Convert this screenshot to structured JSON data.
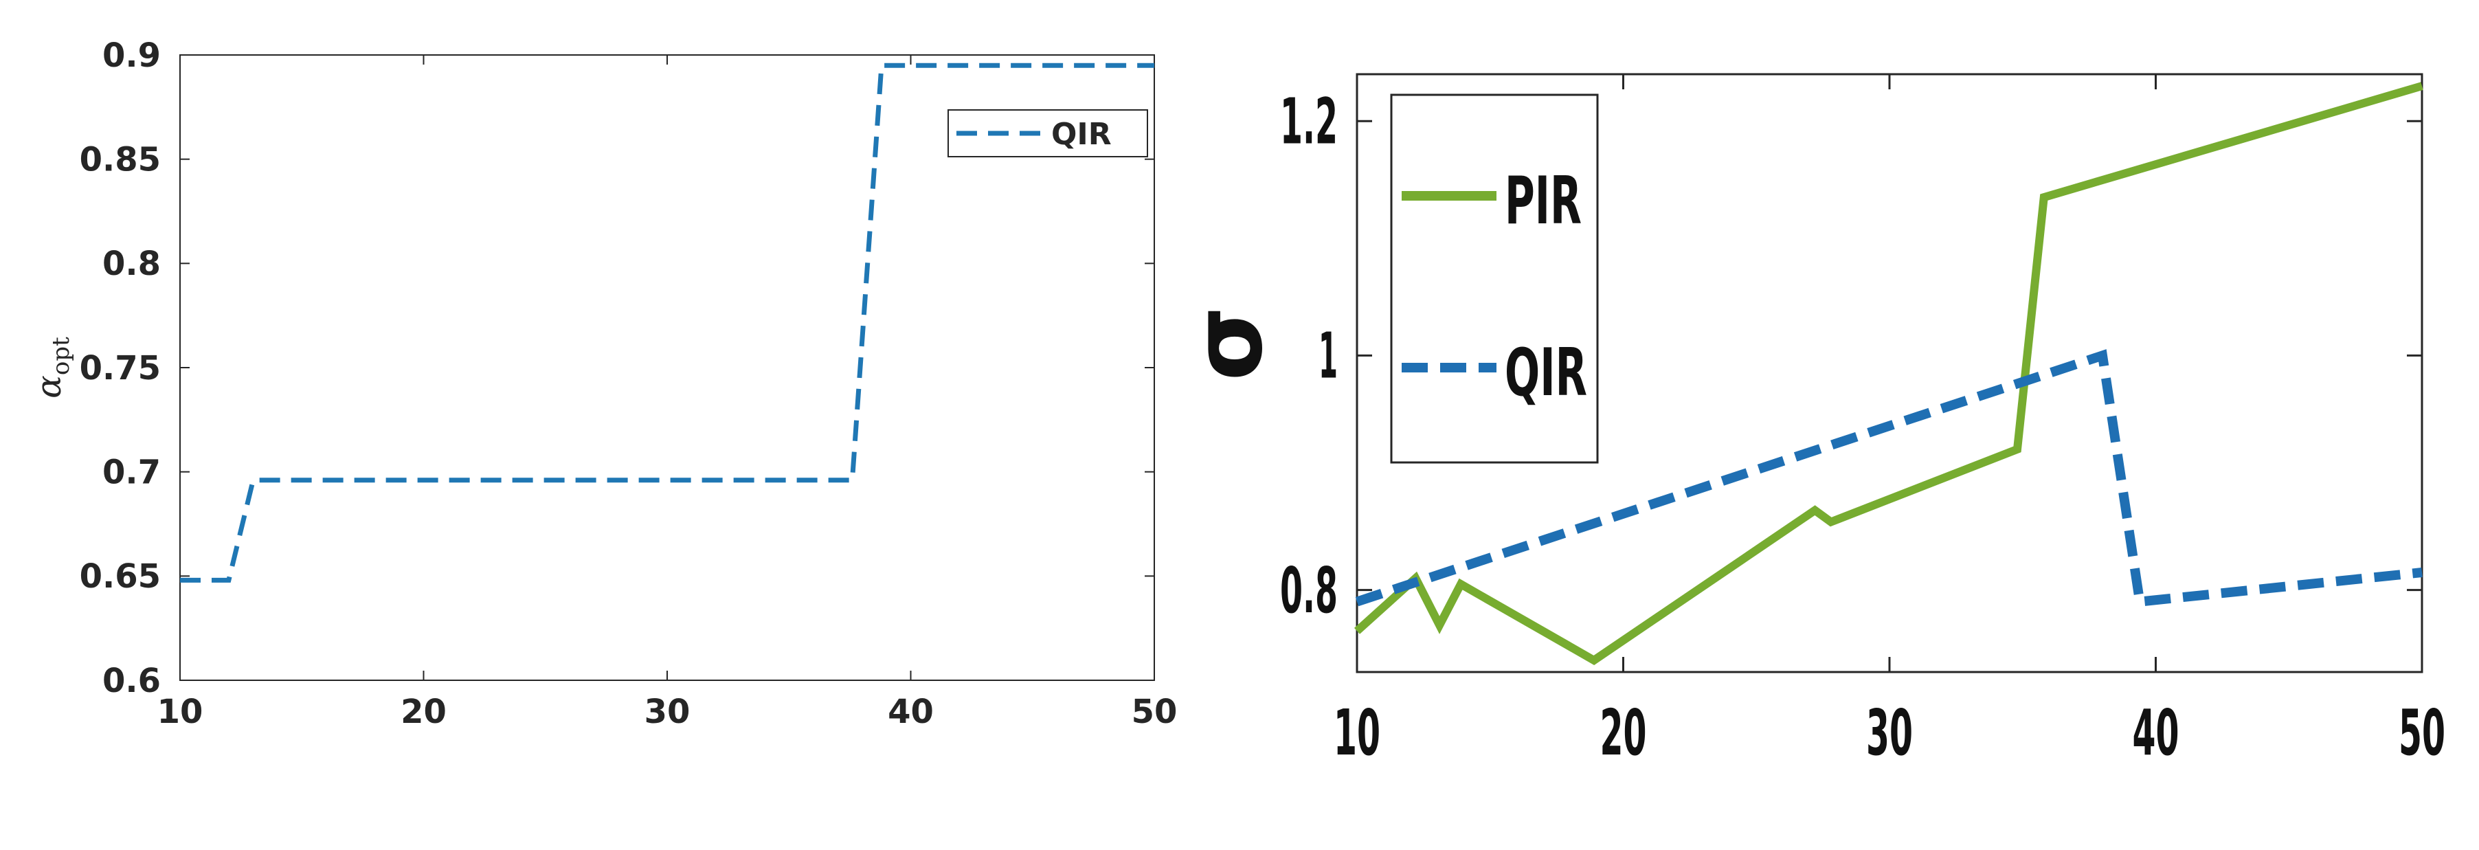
{
  "chart_data": [
    {
      "type": "line",
      "title": "",
      "xlabel": "",
      "ylabel": "α_opt",
      "ylabel_symbol": "α",
      "ylabel_sub": "opt",
      "xlim": [
        10,
        50
      ],
      "ylim": [
        0.6,
        0.9
      ],
      "xticks": [
        "10",
        "20",
        "30",
        "40",
        "50"
      ],
      "yticks": [
        "0.6",
        "0.65",
        "0.7",
        "0.75",
        "0.8",
        "0.85",
        "0.9"
      ],
      "grid": false,
      "legend": "top-right",
      "series": [
        {
          "name": "QIR",
          "color": "#1f77b4",
          "style": "dashed",
          "x": [
            10,
            12,
            13,
            37.6,
            38.8,
            50
          ],
          "y": [
            0.648,
            0.648,
            0.696,
            0.696,
            0.895,
            0.895
          ]
        }
      ]
    },
    {
      "type": "line",
      "title": "",
      "xlabel": "",
      "ylabel": "σ",
      "xlim": [
        10,
        50
      ],
      "ylim": [
        0.73,
        1.24
      ],
      "xticks": [
        "10",
        "20",
        "30",
        "40",
        "50"
      ],
      "yticks": [
        "0.8",
        "1",
        "1.2"
      ],
      "grid": false,
      "legend": "top-left",
      "series": [
        {
          "name": "PIR",
          "color": "#77ac30",
          "style": "solid",
          "x": [
            10,
            12.2,
            13.1,
            13.9,
            18.9,
            27.2,
            27.8,
            34.8,
            35.8,
            50
          ],
          "y": [
            0.765,
            0.81,
            0.77,
            0.805,
            0.74,
            0.868,
            0.858,
            0.92,
            1.135,
            1.23
          ]
        },
        {
          "name": "QIR",
          "color": "#1f6fb3",
          "style": "dashed",
          "x": [
            10,
            38,
            39.4,
            50
          ],
          "y": [
            0.79,
            1.0,
            0.79,
            0.815
          ]
        }
      ]
    }
  ]
}
